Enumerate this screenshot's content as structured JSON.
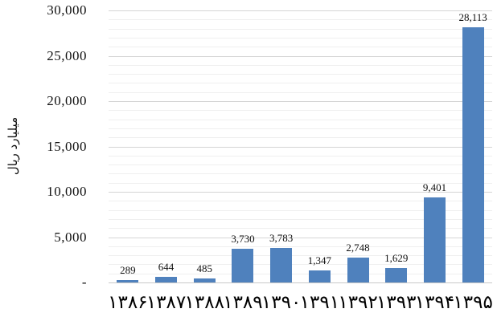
{
  "chart_data": {
    "type": "bar",
    "title": "",
    "xlabel": "",
    "ylabel": "میلیارد ریال",
    "categories": [
      "۱۳۸۶",
      "۱۳۸۷",
      "۱۳۸۸",
      "۱۳۸۹",
      "۱۳۹۰",
      "۱۳۹۱",
      "۱۳۹۲",
      "۱۳۹۳",
      "۱۳۹۴",
      "۱۳۹۵"
    ],
    "values": [
      289,
      644,
      485,
      3730,
      3783,
      1347,
      2748,
      1629,
      9401,
      28113
    ],
    "value_labels": [
      "289",
      "644",
      "485",
      "3,730",
      "3,783",
      "1,347",
      "2,748",
      "1,629",
      "9,401",
      "28,113"
    ],
    "ylim": [
      0,
      30000
    ],
    "y_major_step": 5000,
    "y_minor_step": 1000,
    "y_tick_labels": [
      "-",
      "5,000",
      "10,000",
      "15,000",
      "20,000",
      "25,000",
      "30,000"
    ],
    "legend_position": "none",
    "grid": "horizontal major+minor",
    "colors": {
      "bar_fill": "#4F81BD",
      "major_gridline": "#d5d5d5",
      "minor_gridline": "#efefef",
      "axis_line": "#c9c9c9",
      "label_text": "#111111"
    }
  }
}
